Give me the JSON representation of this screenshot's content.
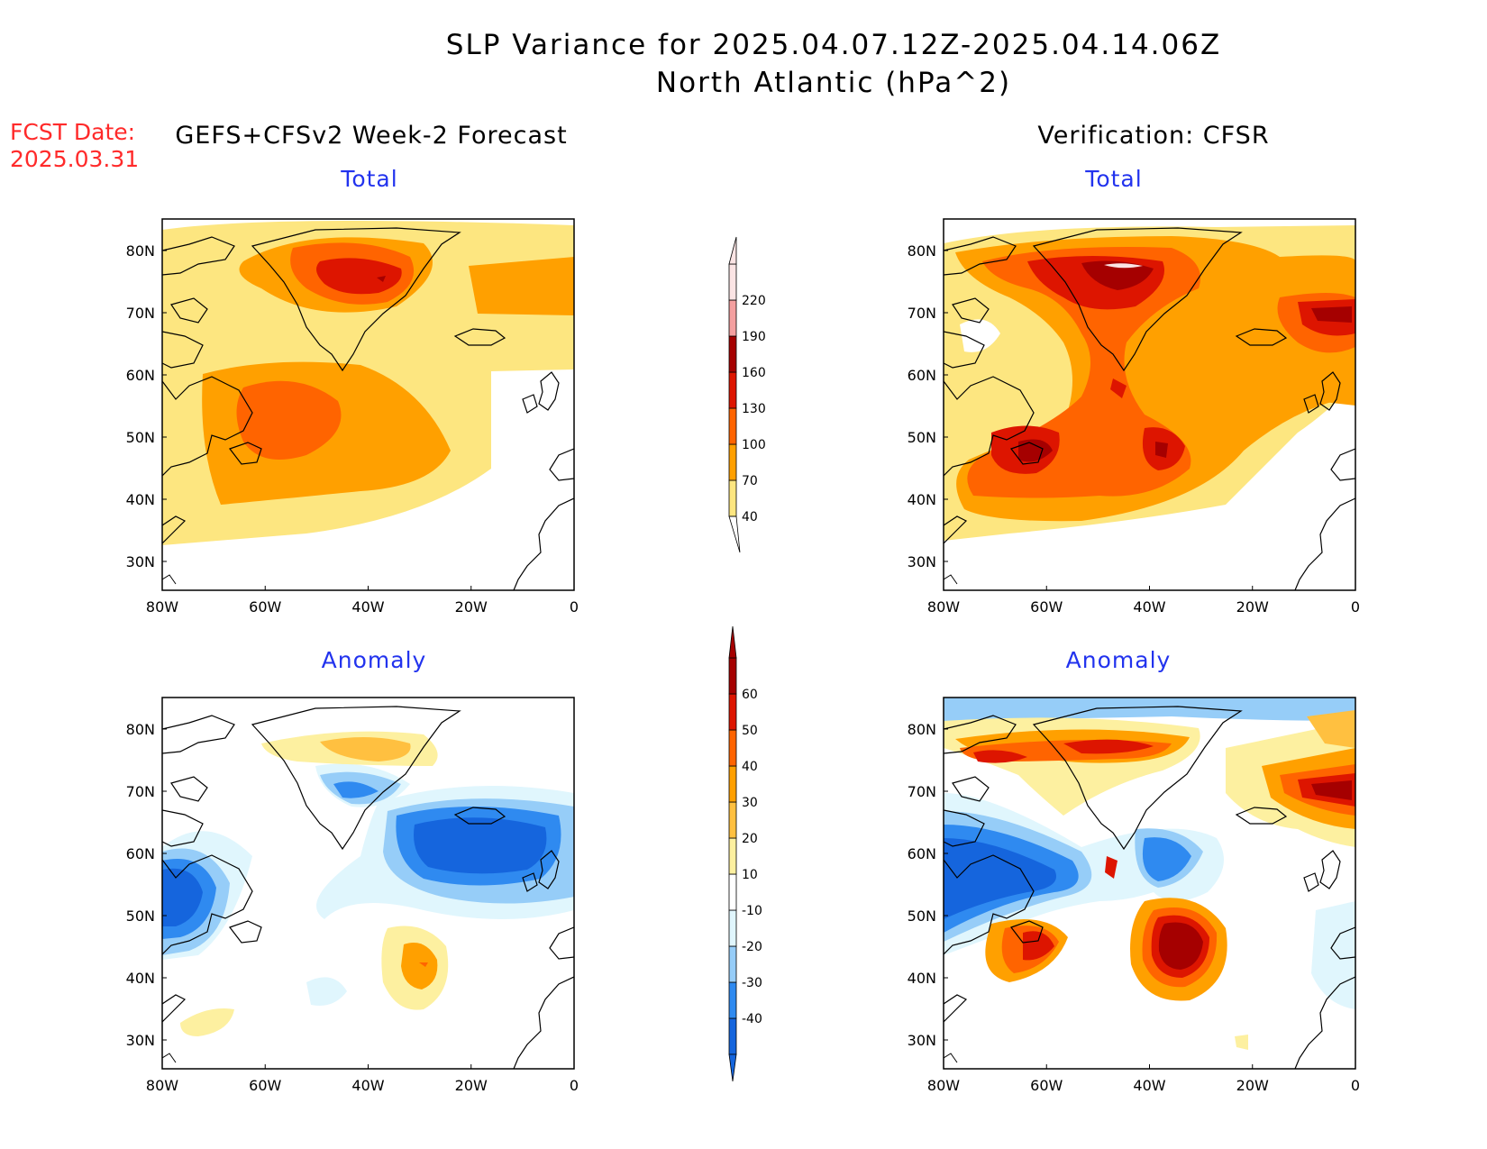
{
  "title": {
    "line1": "SLP Variance for 2025.04.07.12Z-2025.04.14.06Z",
    "line2": "North Atlantic (hPa^2)"
  },
  "fcst_date": {
    "label": "FCST Date:",
    "value": "2025.03.31"
  },
  "headers": {
    "forecast": "GEFS+CFSv2 Week-2 Forecast",
    "verification": "Verification: CFSR"
  },
  "panels": {
    "fc_total": "Total",
    "vf_total": "Total",
    "fc_anom": "Anomaly",
    "vf_anom": "Anomaly"
  },
  "axes": {
    "lat_labels": [
      "80N",
      "70N",
      "60N",
      "50N",
      "40N",
      "30N"
    ],
    "lon_labels": [
      "80W",
      "60W",
      "40W",
      "20W",
      "0"
    ]
  },
  "colorbars": {
    "total": {
      "levels": [
        "40",
        "70",
        "100",
        "130",
        "160",
        "190",
        "220"
      ],
      "colors": [
        "#fde680",
        "#ffa000",
        "#ff6400",
        "#dd1500",
        "#a50000",
        "#f4a0a0",
        "#fbe4e4"
      ]
    },
    "anomaly": {
      "levels": [
        "-40",
        "-30",
        "-20",
        "-10",
        "10",
        "20",
        "30",
        "40",
        "50",
        "60"
      ],
      "colors": [
        "#1565dd",
        "#2f8af0",
        "#96cdf8",
        "#e0f6fd",
        "#ffffff",
        "#fdf0a0",
        "#ffc040",
        "#ffa000",
        "#ff6400",
        "#dd1500",
        "#a50000"
      ]
    }
  }
}
